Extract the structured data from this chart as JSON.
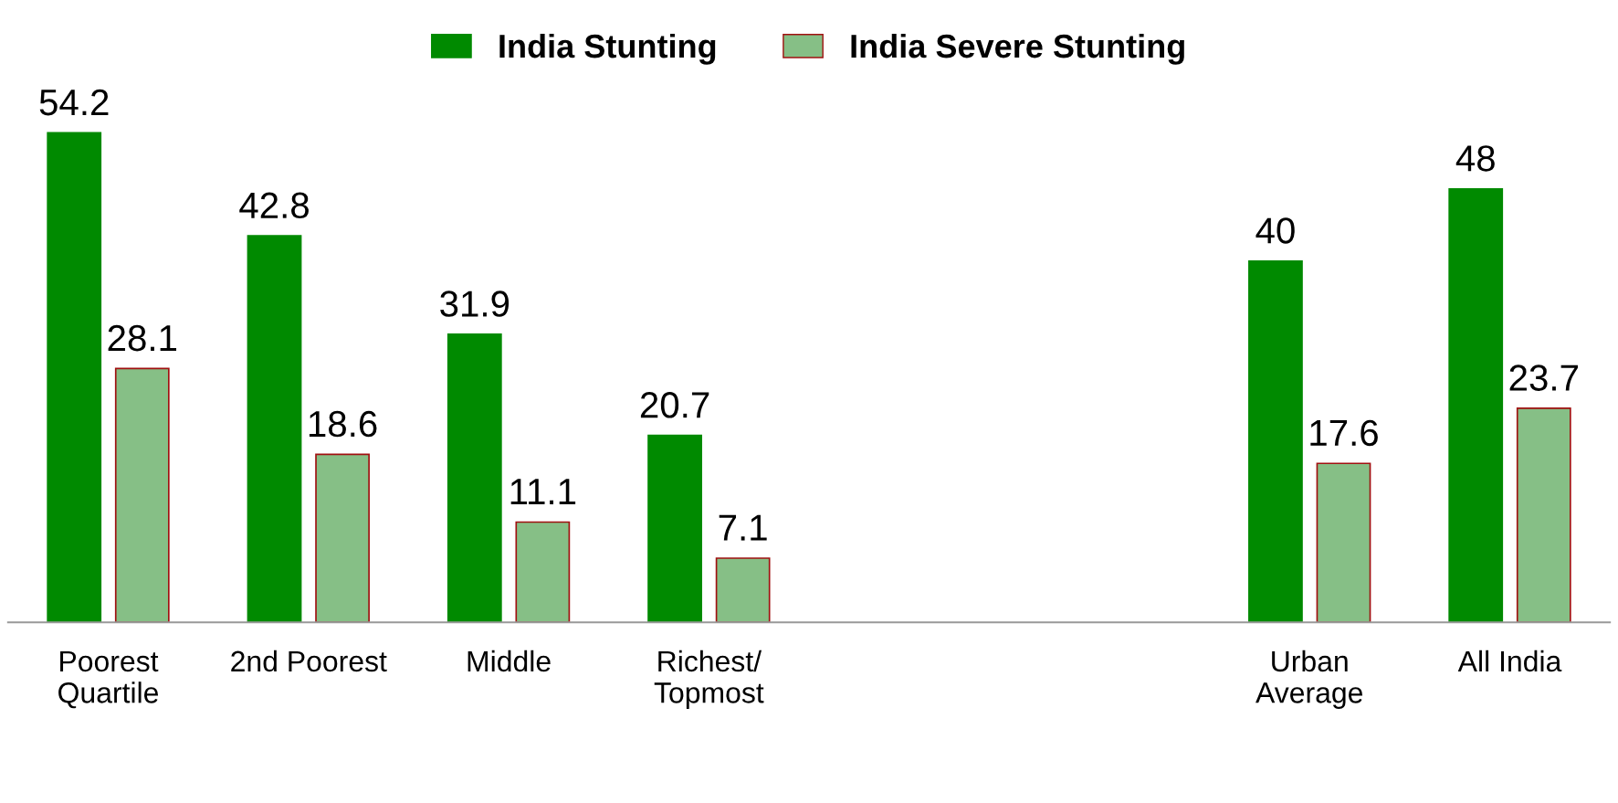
{
  "chart_data": {
    "type": "bar",
    "categories": [
      "Poorest\nQuartile",
      "2nd Poorest",
      "Middle",
      "Richest/\nTopmost",
      null,
      null,
      "Urban\nAverage",
      "All India"
    ],
    "series": [
      {
        "name": "India Stunting",
        "color": "#008a00",
        "values": [
          54.2,
          42.8,
          31.9,
          20.7,
          null,
          null,
          40,
          48
        ]
      },
      {
        "name": "India Severe Stunting",
        "color": "#86bf86",
        "values": [
          28.1,
          18.6,
          11.1,
          7.1,
          null,
          null,
          17.6,
          23.7
        ]
      }
    ],
    "data_labels": true,
    "legend": "top",
    "grid": false,
    "tick_labels": "x"
  }
}
